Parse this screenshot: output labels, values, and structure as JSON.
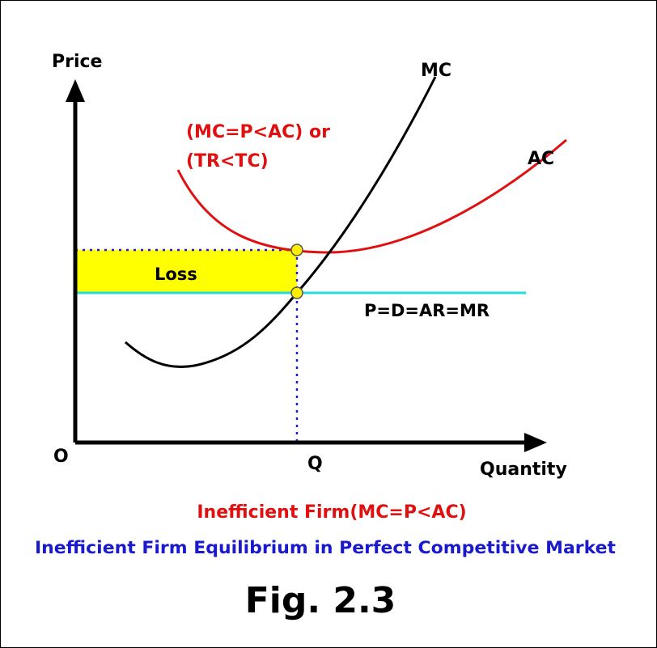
{
  "diagram": {
    "y_axis_label": "Price",
    "x_axis_label": "Quantity",
    "origin_label": "O",
    "q_label": "Q",
    "mc_label": "MC",
    "ac_label": "AC",
    "condition_line1": "(MC=P<AC) or",
    "condition_line2": "(TR<TC)",
    "loss_label": "Loss",
    "price_line_label": "P=D=AR=MR",
    "caption": "Inefficient Firm(MC=P<AC)",
    "subtitle": "Inefficient Firm Equilibrium  in Perfect Competitive Market",
    "figure_label": "Fig. 2.3"
  }
}
